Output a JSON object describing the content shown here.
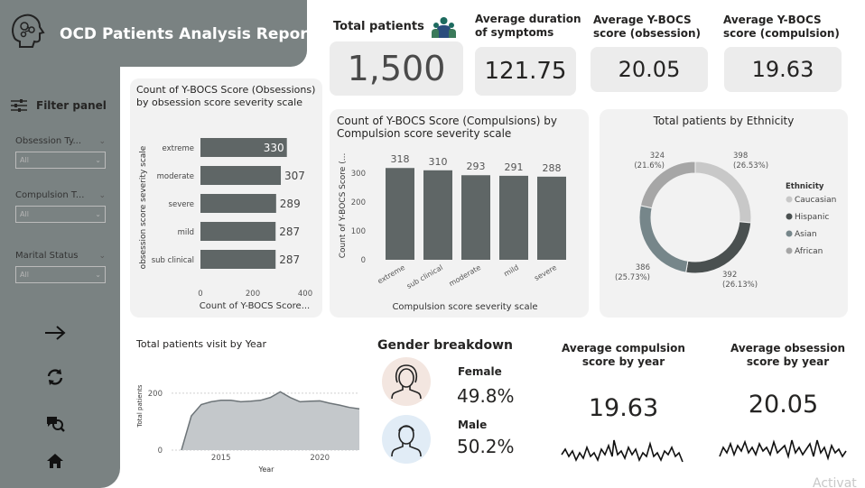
{
  "report_title": "OCD Patients Analysis Report",
  "filter_panel": {
    "title": "Filter panel",
    "slicers": [
      {
        "label": "Obsession Ty...",
        "value": "All"
      },
      {
        "label": "Compulsion T...",
        "value": "All"
      },
      {
        "label": "Marital Status",
        "value": "All"
      }
    ]
  },
  "kpis": {
    "total_patients": {
      "label": "Total patients",
      "value": "1,500"
    },
    "avg_duration": {
      "label": "Average duration of symptoms",
      "value": "121.75"
    },
    "avg_obsession": {
      "label": "Average Y-BOCS score (obsession)",
      "value": "20.05"
    },
    "avg_compulsion": {
      "label": "Average Y-BOCS score (compulsion)",
      "value": "19.63"
    }
  },
  "chart_data": [
    {
      "type": "bar",
      "orientation": "horizontal",
      "title": "Count of Y-BOCS Score (Obsessions) by obsession score severity scale",
      "categories": [
        "extreme",
        "moderate",
        "severe",
        "mild",
        "sub clinical"
      ],
      "values": [
        330,
        307,
        289,
        287,
        287
      ],
      "xlabel": "Count of Y-BOCS Score...",
      "ylabel": "obsession score severity scale",
      "xlim": [
        0,
        400
      ],
      "xticks": [
        "0",
        "200",
        "400"
      ],
      "color": "#5f6666"
    },
    {
      "type": "bar",
      "title": "Count of Y-BOCS Score (Compulsions) by Compulsion score severity scale",
      "categories": [
        "extreme",
        "sub clinical",
        "moderate",
        "mild",
        "severe"
      ],
      "values": [
        318,
        310,
        293,
        291,
        288
      ],
      "xlabel": "Compulsion score severity scale",
      "ylabel": "Count of Y-BOCS Score (...",
      "ylim": [
        0,
        350
      ],
      "yticks": [
        "0",
        "100",
        "200",
        "300"
      ],
      "color": "#5f6666"
    },
    {
      "type": "pie",
      "title": "Total patients by Ethnicity",
      "legend_title": "Ethnicity",
      "legend_position": "right",
      "slices": [
        {
          "name": "Caucasian",
          "value": 398,
          "pct": "26.53%",
          "color": "#c8c8c8"
        },
        {
          "name": "Hispanic",
          "value": 392,
          "pct": "26.13%",
          "color": "#4a5050"
        },
        {
          "name": "Asian",
          "value": 386,
          "pct": "25.73%",
          "color": "#76868a"
        },
        {
          "name": "African",
          "value": 324,
          "pct": "21.6%",
          "color": "#a6a6a6"
        }
      ]
    },
    {
      "type": "area",
      "title": "Total patients visit by Year",
      "xlabel": "Year",
      "ylabel": "Total patients",
      "xticks": [
        "2015",
        "2020"
      ],
      "yticks": [
        "0",
        "200"
      ],
      "x": [
        2013,
        2013.5,
        2014,
        2014.5,
        2015,
        2015.5,
        2016,
        2016.5,
        2017,
        2017.5,
        2018,
        2018.5,
        2019,
        2019.5,
        2020,
        2020.5,
        2021,
        2021.5,
        2022
      ],
      "y": [
        0,
        120,
        160,
        170,
        175,
        175,
        170,
        172,
        175,
        185,
        205,
        185,
        170,
        172,
        173,
        165,
        158,
        150,
        145
      ],
      "ylim": [
        0,
        260
      ],
      "xlim": [
        2012.5,
        2022
      ]
    }
  ],
  "gender": {
    "title": "Gender breakdown",
    "female_label": "Female",
    "female_value": "49.8%",
    "male_label": "Male",
    "male_value": "50.2%"
  },
  "avg_by_year": {
    "compulsion_title": "Average compulsion score by year",
    "compulsion_value": "19.63",
    "obsession_title": "Average obsession score by year",
    "obsession_value": "20.05"
  },
  "watermark": "Activat"
}
